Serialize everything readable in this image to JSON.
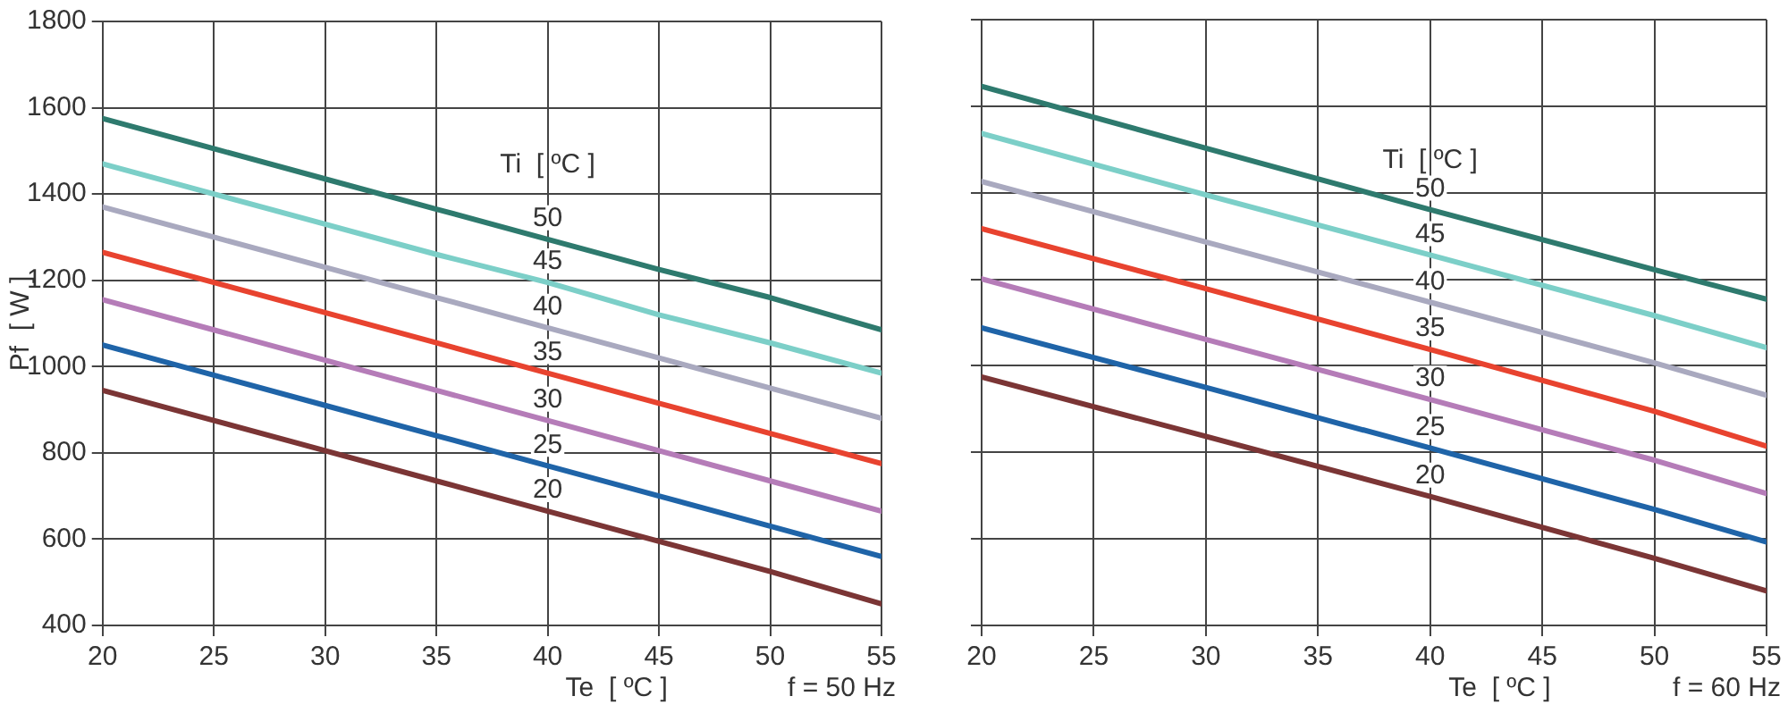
{
  "chart_data": [
    {
      "type": "line",
      "xlabel": "Te  [ ºC ]",
      "ylabel": "Pf  [ W ]",
      "legend_title": "Ti  [ ºC ]",
      "annotations": [
        "f = 50 Hz"
      ],
      "x": [
        20,
        25,
        30,
        35,
        40,
        45,
        50,
        55
      ],
      "xlim": [
        20,
        55
      ],
      "xticks": [
        20,
        25,
        30,
        35,
        40,
        45,
        50,
        55
      ],
      "ylim": [
        400,
        1800
      ],
      "yticks": [
        400,
        600,
        800,
        1000,
        1200,
        1400,
        1600,
        1800
      ],
      "grid": true,
      "legend": false,
      "marker": "none",
      "line_style": "solid",
      "series": [
        {
          "name": "50",
          "color": "#2e7a6e",
          "values": [
            1575,
            1505,
            1435,
            1365,
            1295,
            1225,
            1160,
            1085
          ]
        },
        {
          "name": "45",
          "color": "#7ccfc8",
          "values": [
            1470,
            1400,
            1330,
            1260,
            1195,
            1120,
            1055,
            985
          ]
        },
        {
          "name": "40",
          "color": "#a9a9bf",
          "values": [
            1370,
            1300,
            1230,
            1160,
            1090,
            1020,
            950,
            880
          ]
        },
        {
          "name": "35",
          "color": "#e8432f",
          "values": [
            1265,
            1195,
            1125,
            1055,
            985,
            915,
            845,
            775
          ]
        },
        {
          "name": "30",
          "color": "#b57cb8",
          "values": [
            1155,
            1085,
            1015,
            945,
            875,
            805,
            735,
            665
          ]
        },
        {
          "name": "25",
          "color": "#1f64a8",
          "values": [
            1050,
            980,
            910,
            840,
            770,
            700,
            630,
            560
          ]
        },
        {
          "name": "20",
          "color": "#7b3535",
          "values": [
            945,
            875,
            805,
            735,
            665,
            595,
            525,
            450
          ]
        }
      ]
    },
    {
      "type": "line",
      "xlabel": "Te  [ ºC ]",
      "legend_title": "Ti  [ ºC ]",
      "annotations": [
        "f = 60 Hz"
      ],
      "x": [
        20,
        30,
        40,
        50,
        55
      ],
      "xlim": [
        20,
        55
      ],
      "xticks": [
        20,
        25,
        30,
        35,
        40,
        45,
        50,
        55
      ],
      "ylim": [
        400,
        1800
      ],
      "yticks": [
        400,
        600,
        800,
        1000,
        1200,
        1400,
        1600,
        1800
      ],
      "tick_labels": "x",
      "grid": true,
      "legend": false,
      "marker": "none",
      "line_style": "solid",
      "series": [
        {
          "name": "50",
          "color": "#2e7a6e",
          "values": [
            1646,
            1503,
            1361,
            1222,
            1154
          ]
        },
        {
          "name": "45",
          "color": "#7ccfc8",
          "values": [
            1537,
            1395,
            1256,
            1116,
            1042
          ]
        },
        {
          "name": "40",
          "color": "#a9a9bf",
          "values": [
            1426,
            1286,
            1147,
            1007,
            932
          ]
        },
        {
          "name": "35",
          "color": "#e8432f",
          "values": [
            1317,
            1178,
            1038,
            895,
            814
          ]
        },
        {
          "name": "30",
          "color": "#b57cb8",
          "values": [
            1201,
            1061,
            922,
            782,
            705
          ]
        },
        {
          "name": "25",
          "color": "#1f64a8",
          "values": [
            1088,
            950,
            810,
            668,
            593
          ]
        },
        {
          "name": "20",
          "color": "#7b3535",
          "values": [
            974,
            837,
            698,
            555,
            480
          ]
        }
      ]
    }
  ]
}
